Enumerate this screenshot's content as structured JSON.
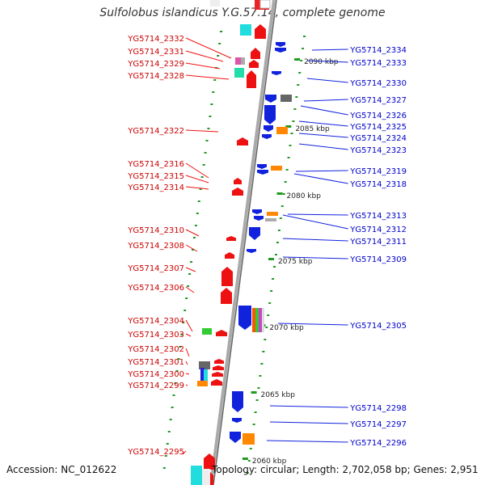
{
  "title": "Sulfolobus islandicus Y.G.57.14, complete genome",
  "footer": {
    "accession": "Accession: NC_012622",
    "summary": "Topology: circular; Length: 2,702,058 bp; Genes: 2,951"
  },
  "colors": {
    "forward": "#ee1111",
    "reverse": "#1122dd",
    "forward_label": "#cc0000",
    "reverse_label": "#0000cc",
    "backbone": "#888888",
    "tick": "#229922"
  },
  "kbp_labels": [
    "2090 kbp",
    "2085 kbp",
    "2080 kbp",
    "2075 kbp",
    "2070 kbp",
    "2065 kbp",
    "2060 kbp"
  ],
  "forward_genes": [
    "YG5714_2332",
    "YG5714_2331",
    "YG5714_2329",
    "YG5714_2328",
    "YG5714_2322",
    "YG5714_2316",
    "YG5714_2315",
    "YG5714_2314",
    "YG5714_2310",
    "YG5714_2308",
    "YG5714_2307",
    "YG5714_2306",
    "YG5714_2304",
    "YG5714_2303",
    "YG5714_2302",
    "YG5714_2301",
    "YG5714_2300",
    "YG5714_2299",
    "YG5714_2295"
  ],
  "reverse_genes": [
    "YG5714_2334",
    "YG5714_2333",
    "YG5714_2330",
    "YG5714_2327",
    "YG5714_2326",
    "YG5714_2325",
    "YG5714_2324",
    "YG5714_2323",
    "YG5714_2319",
    "YG5714_2318",
    "YG5714_2313",
    "YG5714_2312",
    "YG5714_2311",
    "YG5714_2309",
    "YG5714_2305",
    "YG5714_2298",
    "YG5714_2297",
    "YG5714_2296"
  ]
}
